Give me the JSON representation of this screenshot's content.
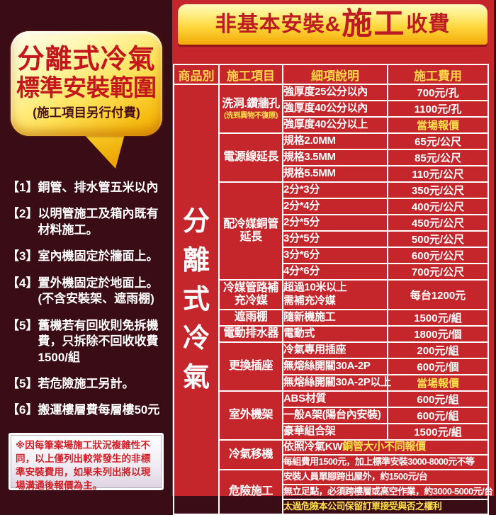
{
  "banner": {
    "part1": "非基本安裝&",
    "part2": "施工",
    "part3": "收費"
  },
  "left_panel": {
    "bubble": {
      "line1": "分離式冷氣",
      "line2": "標準安裝範圍",
      "line3": "(施工項目另行付費)"
    },
    "items": [
      {
        "index": "【1】",
        "text": "銅管、排水管五米以內"
      },
      {
        "index": "【2】",
        "text": "以明管施工及箱內既有材料施工。"
      },
      {
        "index": "【3】",
        "text": "室內機固定於牆面上。"
      },
      {
        "index": "【4】",
        "text": "置外機固定於地面上。",
        "text2": "(不含安裝架、遮雨棚)"
      },
      {
        "index": "【5】",
        "text": "舊機若有回收則免拆機費，只拆除不回收收費1500/組"
      },
      {
        "index": "【5】",
        "text": "若危險施工另計。"
      },
      {
        "index": "【6】",
        "text": "搬運樓層費每層樓50元"
      }
    ],
    "note": "※因每筆案場施工狀況複雜性不同，以上僅列出較常發生的非標準安裝費用，如果未列出將以現場溝通後報價為主。"
  },
  "table": {
    "headers": [
      "商品別",
      "施工項目",
      "細項說明",
      "施工費用"
    ],
    "product": "分離式冷氣",
    "groups": [
      {
        "item": "洗洞.鑽牆孔",
        "item_sub": "(洗到異物不復原)",
        "rows": [
          {
            "detail": "強厚度25公分以內",
            "fee": "700元/孔"
          },
          {
            "detail": "強厚度40公分以內",
            "fee": "1100元/孔"
          },
          {
            "detail": "強厚度40公分以上",
            "fee": "當場報價",
            "fee_highlight": true
          }
        ]
      },
      {
        "item": "電源線延長",
        "rows": [
          {
            "detail": "規格2.0MM",
            "fee": "65元/公尺"
          },
          {
            "detail": "規格3.5MM",
            "fee": "85元/公尺"
          },
          {
            "detail": "規格5.5MM",
            "fee": "110元/公尺"
          }
        ]
      },
      {
        "item": "配冷媒銅管延長",
        "rows": [
          {
            "detail": "2分*3分",
            "fee": "350元/公尺"
          },
          {
            "detail": "2分*4分",
            "fee": "400元/公尺"
          },
          {
            "detail": "2分*5分",
            "fee": "450元/公尺"
          },
          {
            "detail": "3分*5分",
            "fee": "500元/公尺"
          },
          {
            "detail": "3分*6分",
            "fee": "600元/公尺"
          },
          {
            "detail": "4分*6分",
            "fee": "700元/公尺"
          }
        ]
      },
      {
        "item": "冷媒管路補充冷媒",
        "rows": [
          {
            "detail": "超過10米以上\n需補充冷媒",
            "fee": "每台1200元",
            "tall": true
          }
        ]
      },
      {
        "item": "遮雨棚",
        "rows": [
          {
            "detail": "隨新機施工",
            "fee": "1500元/組"
          }
        ]
      },
      {
        "item": "電動排水器",
        "rows": [
          {
            "detail": "電動式",
            "fee": "1800元/個"
          }
        ]
      },
      {
        "item": "更換插座",
        "rows": [
          {
            "detail": "冷氣專用插座",
            "fee": "200元/組"
          },
          {
            "detail": "無熔絲開關30A-2P",
            "fee": "600元/個"
          },
          {
            "detail": "無熔絲開關30A-2P以上",
            "fee": "當場報價",
            "fee_highlight": true
          }
        ]
      },
      {
        "item": "室外機架",
        "rows": [
          {
            "detail": "ABS材質",
            "fee": "600元/組"
          },
          {
            "detail": "一般A架(陽台內安裝)",
            "fee": "600元/組"
          },
          {
            "detail": "豪華組合架",
            "fee": "1500元/組"
          }
        ]
      },
      {
        "item": "冷氣移機",
        "rows": [
          {
            "merged": true,
            "detail_parts": [
              {
                "text": "依照冷氣KW",
                "highlight": false
              },
              {
                "text": "銅管大小不同報價",
                "highlight": true
              }
            ]
          },
          {
            "merged": true,
            "detail": "每組費用1500元，加上標準安裝3000-8000元不等"
          }
        ]
      },
      {
        "item": "危險施工",
        "rows": [
          {
            "merged": true,
            "detail": "安裝人員單腳跨出屋外，約1500元/台"
          },
          {
            "merged": true,
            "detail": "無立足點，必須跨樓層或高空作業，約3000-5000元/台"
          },
          {
            "merged": true,
            "detail": "太過危險本公司保留訂單接受與否之權利",
            "highlight": true
          }
        ]
      }
    ]
  },
  "colors": {
    "background_maroon": "#3a0c16",
    "panel_red": "#c5262c",
    "banner_gold": "#f3a906",
    "header_text_yellow": "#ffd64a",
    "highlight_yellow": "#ffe14d",
    "title_red": "#bc1c23",
    "note_red": "#d21f26",
    "grid_white": "#ffffff"
  }
}
